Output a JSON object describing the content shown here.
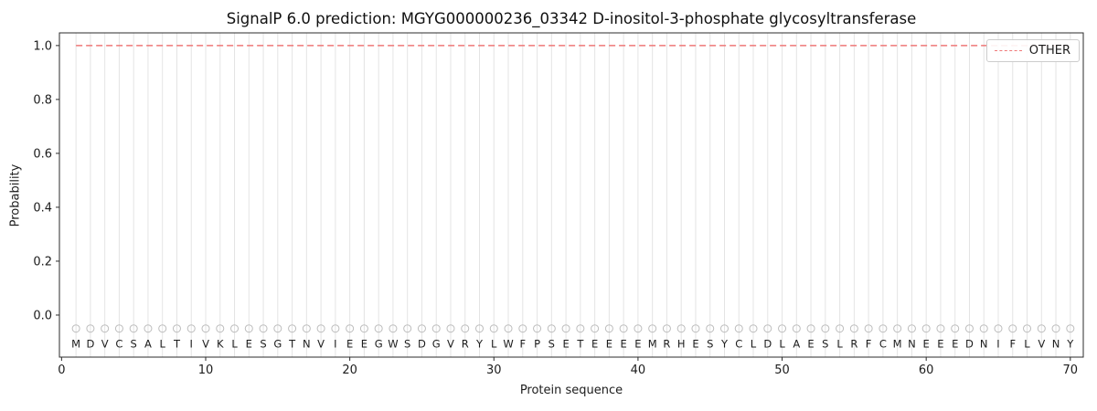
{
  "chart_data": {
    "type": "line",
    "title": "SignalP 6.0 prediction: MGYG000000236_03342 D-inositol-3-phosphate glycosyltransferase",
    "xlabel": "Protein sequence",
    "ylabel": "Probability",
    "xlim": [
      -0.15,
      70.9
    ],
    "ylim": [
      -0.156,
      1.047
    ],
    "x_ticks": [
      0,
      10,
      20,
      30,
      40,
      50,
      60,
      70
    ],
    "y_ticks": [
      0.0,
      0.2,
      0.4,
      0.6,
      0.8,
      1.0
    ],
    "grid": "vertical-line-per-residue",
    "legend": {
      "position": "upper-right",
      "entries": [
        "OTHER"
      ]
    },
    "sequence": [
      "M",
      "D",
      "V",
      "C",
      "S",
      "A",
      "L",
      "T",
      "I",
      "V",
      "K",
      "L",
      "E",
      "S",
      "G",
      "T",
      "N",
      "V",
      "I",
      "E",
      "E",
      "G",
      "W",
      "S",
      "D",
      "G",
      "V",
      "R",
      "Y",
      "L",
      "W",
      "F",
      "P",
      "S",
      "E",
      "T",
      "E",
      "E",
      "E",
      "E",
      "M",
      "R",
      "H",
      "E",
      "S",
      "Y",
      "C",
      "L",
      "D",
      "L",
      "A",
      "E",
      "S",
      "L",
      "R",
      "F",
      "C",
      "M",
      "N",
      "E",
      "E",
      "E",
      "D",
      "N",
      "I",
      "F",
      "L",
      "V",
      "N",
      "Y"
    ],
    "residue_position_start": 1,
    "residue_marker_y": -0.05,
    "series": [
      {
        "name": "OTHER",
        "linestyle": "dashed",
        "color": "#ee7878",
        "values": [
          1.0,
          1.0,
          1.0,
          1.0,
          1.0,
          1.0,
          1.0,
          1.0,
          1.0,
          1.0,
          1.0,
          1.0,
          1.0,
          1.0,
          1.0,
          1.0,
          1.0,
          1.0,
          1.0,
          1.0,
          1.0,
          1.0,
          1.0,
          1.0,
          1.0,
          1.0,
          1.0,
          1.0,
          1.0,
          1.0,
          1.0,
          1.0,
          1.0,
          1.0,
          1.0,
          1.0,
          1.0,
          1.0,
          1.0,
          1.0,
          1.0,
          1.0,
          1.0,
          1.0,
          1.0,
          1.0,
          1.0,
          1.0,
          1.0,
          1.0,
          1.0,
          1.0,
          1.0,
          1.0,
          1.0,
          1.0,
          1.0,
          1.0,
          1.0,
          1.0,
          1.0,
          1.0,
          1.0,
          1.0,
          1.0,
          1.0,
          1.0,
          1.0,
          1.0,
          1.0
        ]
      }
    ],
    "colors": {
      "grid": "#e4e4e4",
      "marker": "#bdbdbd",
      "text": "#1c1c1c",
      "axis": "#2b2b2b",
      "other_line": "#ee7878"
    }
  }
}
